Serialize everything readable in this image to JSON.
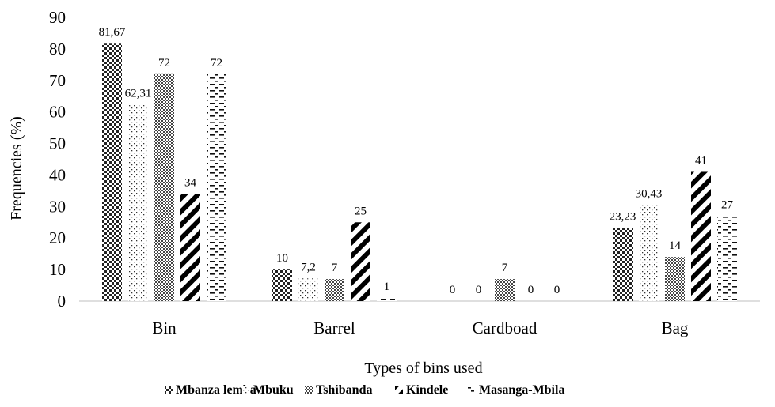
{
  "chart_data": {
    "type": "bar",
    "title": "",
    "xlabel": "Types of bins used",
    "ylabel": "Frequencies (%)",
    "ylim": [
      0,
      90
    ],
    "yticks": [
      0,
      10,
      20,
      30,
      40,
      50,
      60,
      70,
      80,
      90
    ],
    "categories": [
      "Bin",
      "Barrel",
      "Cardboad",
      "Bag"
    ],
    "series": [
      {
        "name": "Mbanza lemba",
        "pattern": "checker-coarse",
        "values": [
          81.67,
          10,
          0,
          23.23
        ],
        "labels": [
          "81,67",
          "10",
          "0",
          "23,23"
        ]
      },
      {
        "name": "Mbuku",
        "pattern": "dots",
        "values": [
          62.31,
          7.2,
          0,
          30.43
        ],
        "labels": [
          "62,31",
          "7,2",
          "0",
          "30,43"
        ]
      },
      {
        "name": "Tshibanda",
        "pattern": "checker-fine",
        "values": [
          72,
          7,
          7,
          14
        ],
        "labels": [
          "72",
          "7",
          "7",
          "14"
        ]
      },
      {
        "name": "Kindele",
        "pattern": "wide-diagonal",
        "values": [
          34,
          25,
          0,
          41
        ],
        "labels": [
          "34",
          "25",
          "0",
          "41"
        ]
      },
      {
        "name": "Masanga-Mbila",
        "pattern": "dashes",
        "values": [
          72,
          1,
          0,
          27
        ],
        "labels": [
          "72",
          "1",
          "0",
          "27"
        ]
      }
    ],
    "legend_position": "bottom",
    "grid": false
  }
}
